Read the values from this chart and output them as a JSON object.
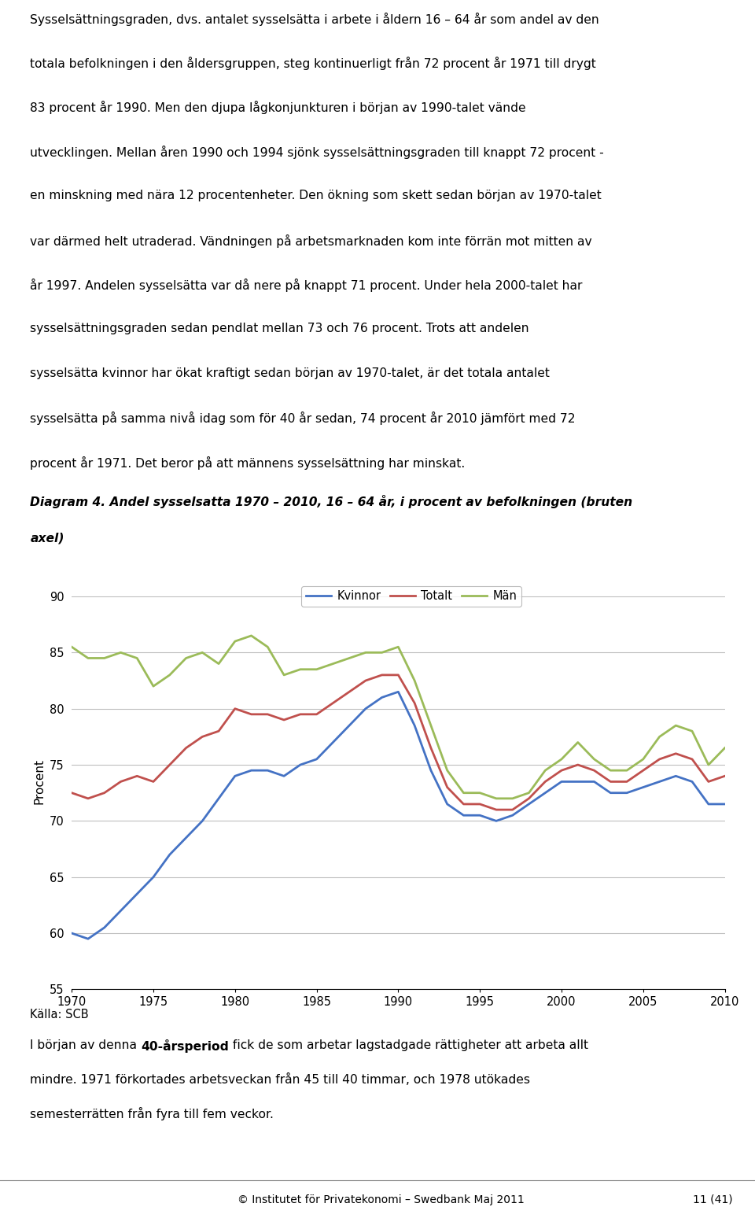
{
  "title_diagram_line1": "Diagram 4. Andel sysselsatta 1970 – 2010, 16 – 64 år, i procent av befolkningen (bruten",
  "title_diagram_line2": "axel)",
  "ylabel": "Procent",
  "ylim": [
    55,
    92
  ],
  "yticks": [
    55,
    60,
    65,
    70,
    75,
    80,
    85,
    90
  ],
  "xticks": [
    1970,
    1975,
    1980,
    1985,
    1990,
    1995,
    2000,
    2005,
    2010
  ],
  "source": "Källa: SCB",
  "footer_left": "© Institutet för Privatekonomi – Swedbank Maj 2011",
  "footer_right": "11 (41)",
  "years": [
    1970,
    1971,
    1972,
    1973,
    1974,
    1975,
    1976,
    1977,
    1978,
    1979,
    1980,
    1981,
    1982,
    1983,
    1984,
    1985,
    1986,
    1987,
    1988,
    1989,
    1990,
    1991,
    1992,
    1993,
    1994,
    1995,
    1996,
    1997,
    1998,
    1999,
    2000,
    2001,
    2002,
    2003,
    2004,
    2005,
    2006,
    2007,
    2008,
    2009,
    2010
  ],
  "kvinnor": [
    60.0,
    59.5,
    60.5,
    62.0,
    63.5,
    65.0,
    67.0,
    68.5,
    70.0,
    72.0,
    74.0,
    74.5,
    74.5,
    74.0,
    75.0,
    75.5,
    77.0,
    78.5,
    80.0,
    81.0,
    81.5,
    78.5,
    74.5,
    71.5,
    70.5,
    70.5,
    70.0,
    70.5,
    71.5,
    72.5,
    73.5,
    73.5,
    73.5,
    72.5,
    72.5,
    73.0,
    73.5,
    74.0,
    73.5,
    71.5,
    71.5
  ],
  "totalt": [
    72.5,
    72.0,
    72.5,
    73.5,
    74.0,
    73.5,
    75.0,
    76.5,
    77.5,
    78.0,
    80.0,
    79.5,
    79.5,
    79.0,
    79.5,
    79.5,
    80.5,
    81.5,
    82.5,
    83.0,
    83.0,
    80.5,
    76.5,
    73.0,
    71.5,
    71.5,
    71.0,
    71.0,
    72.0,
    73.5,
    74.5,
    75.0,
    74.5,
    73.5,
    73.5,
    74.5,
    75.5,
    76.0,
    75.5,
    73.5,
    74.0
  ],
  "man": [
    85.5,
    84.5,
    84.5,
    85.0,
    84.5,
    82.0,
    83.0,
    84.5,
    85.0,
    84.0,
    86.0,
    86.5,
    85.5,
    83.0,
    83.5,
    83.5,
    84.0,
    84.5,
    85.0,
    85.0,
    85.5,
    82.5,
    78.5,
    74.5,
    72.5,
    72.5,
    72.0,
    72.0,
    72.5,
    74.5,
    75.5,
    77.0,
    75.5,
    74.5,
    74.5,
    75.5,
    77.5,
    78.5,
    78.0,
    75.0,
    76.5
  ],
  "color_kvinnor": "#4472C4",
  "color_totalt": "#C0504D",
  "color_man": "#9BBB59",
  "line_width": 2.0,
  "grid_color": "#BFBFBF",
  "bg_color": "#FFFFFF",
  "text_top_lines": [
    "Sysselsättningsgraden, dvs. antalet sysselsätta i arbete i åldern 16 – 64 år som andel av den",
    "totala befolkningen i den åldersgruppen, steg kontinuerligt från 72 procent år 1971 till drygt",
    "83 procent år 1990. Men den djupa lågkonjunkturen i början av 1990-talet vände",
    "utvecklingen. Mellan åren 1990 och 1994 sjönk sysselsättningsgraden till knappt 72 procent -",
    "en minskning med nära 12 procentenheter. Den ökning som skett sedan början av 1970-talet",
    "var därmed helt utraderad. Vändningen på arbetsmarknaden kom inte förrän mot mitten av",
    "år 1997. Andelen sysselsätta var då nere på knappt 71 procent. Under hela 2000-talet har",
    "sysselsättningsgraden sedan pendlat mellan 73 och 76 procent. Trots att andelen",
    "sysselsätta kvinnor har ökat kraftigt sedan början av 1970-talet, är det totala antalet",
    "sysselsätta på samma nivå idag som för 40 år sedan, 74 procent år 2010 jämfört med 72",
    "procent år 1971. Det beror på att männens sysselsättning har minskat."
  ],
  "text_bottom_pre": "I början av denna ",
  "text_bottom_bold": "40-årsperiod",
  "text_bottom_post": " fick de som arbetar lagstadgade rättigheter att arbeta allt",
  "text_bottom_line2": "mindre. 1971 förkortades arbetsveckan från 45 till 40 timmar, och 1978 utökades",
  "text_bottom_line3": "semesterrätten från fyra till fem veckor."
}
